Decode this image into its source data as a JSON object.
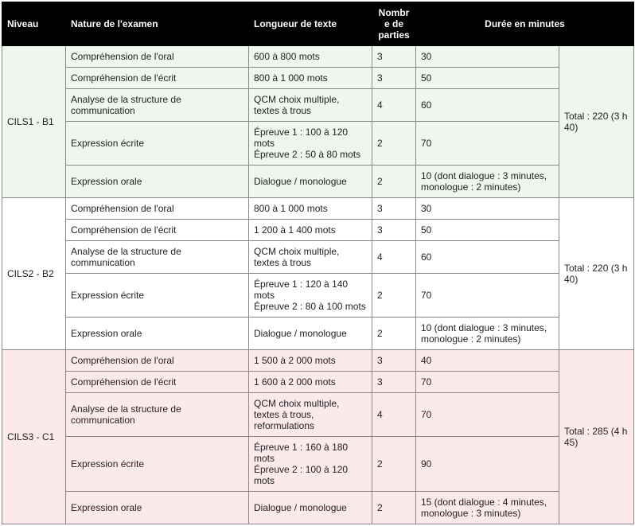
{
  "headers": {
    "level": "Niveau",
    "nature": "Nature de l'examen",
    "length": "Longueur de texte",
    "parts": "Nombre de parties",
    "duration": "Durée en minutes"
  },
  "colors": {
    "header_bg": "#000000",
    "header_fg": "#ffffff",
    "border": "#888888",
    "level_bg": [
      "#eef6ee",
      "#ffffff",
      "#fce9ec"
    ]
  },
  "levels": [
    {
      "name": "CILS1 - B1",
      "total": "Total : 220 (3 h 40)",
      "rows": [
        {
          "nature": "Compréhension de l'oral",
          "length": "600 à 800 mots",
          "parts": "3",
          "duration": "30"
        },
        {
          "nature": "Compréhension de l'écrit",
          "length": "800 à 1 000 mots",
          "parts": "3",
          "duration": "50"
        },
        {
          "nature": "Analyse de la structure de communication",
          "length": "QCM choix multiple, textes à trous",
          "parts": "4",
          "duration": "60"
        },
        {
          "nature": "Expression écrite",
          "length": "Épreuve 1 : 100 à 120 mots\nÉpreuve 2 : 50 à 80 mots",
          "parts": "2",
          "duration": "70"
        },
        {
          "nature": "Expression orale",
          "length": "Dialogue / monologue",
          "parts": "2",
          "duration": "10 (dont dialogue : 3 minutes, monologue : 2 minutes)"
        }
      ]
    },
    {
      "name": "CILS2 - B2",
      "total": "Total : 220 (3 h 40)",
      "rows": [
        {
          "nature": "Compréhension de l'oral",
          "length": "800 à 1 000 mots",
          "parts": "3",
          "duration": "30"
        },
        {
          "nature": "Compréhension de l'écrit",
          "length": "1 200 à 1 400 mots",
          "parts": "3",
          "duration": "50"
        },
        {
          "nature": "Analyse de la structure de communication",
          "length": "QCM choix multiple, textes à trous",
          "parts": "4",
          "duration": "60"
        },
        {
          "nature": "Expression écrite",
          "length": "Épreuve 1 : 120 à 140 mots\nÉpreuve 2 : 80 à 100 mots",
          "parts": "2",
          "duration": "70"
        },
        {
          "nature": "Expression orale",
          "length": "Dialogue / monologue",
          "parts": "2",
          "duration": "10 (dont dialogue : 3 minutes, monologue : 2 minutes)"
        }
      ]
    },
    {
      "name": "CILS3 - C1",
      "total": "Total : 285 (4 h 45)",
      "rows": [
        {
          "nature": "Compréhension de l'oral",
          "length": "1 500 à 2 000 mots",
          "parts": "3",
          "duration": "40"
        },
        {
          "nature": "Compréhension de l'écrit",
          "length": "1 600 à 2 000 mots",
          "parts": "3",
          "duration": "70"
        },
        {
          "nature": "Analyse de la structure de communication",
          "length": "QCM choix multiple, textes à trous, reformulations",
          "parts": "4",
          "duration": "70"
        },
        {
          "nature": "Expression écrite",
          "length": "Épreuve 1 : 160 à 180 mots\nÉpreuve 2 : 100 à 120 mots",
          "parts": "2",
          "duration": "90"
        },
        {
          "nature": "Expression orale",
          "length": "Dialogue / monologue",
          "parts": "2",
          "duration": "15 (dont dialogue : 4 minutes, monologue : 3 minutes)"
        }
      ]
    }
  ]
}
